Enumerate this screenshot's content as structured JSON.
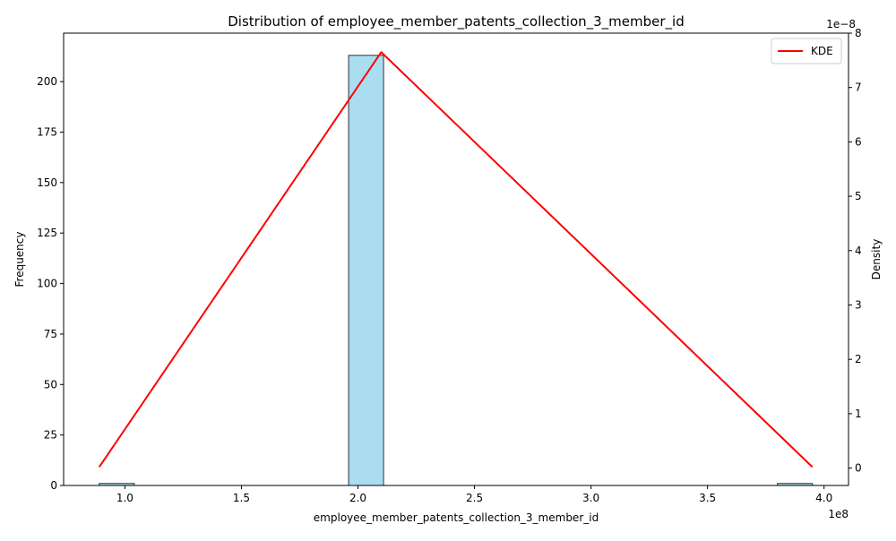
{
  "chart_data": {
    "type": "bar",
    "title": "Distribution of employee_member_patents_collection_3_member_id",
    "xlabel": "employee_member_patents_collection_3_member_id",
    "ylabel": "Frequency",
    "y2label": "Density",
    "x_offset_label": "1e8",
    "y2_offset_label": "1e−8",
    "xlim": [
      0.737,
      4.105
    ],
    "ylim": [
      0,
      224
    ],
    "y2lim": [
      -0.32,
      8.0
    ],
    "x_ticks": [
      1.0,
      1.5,
      2.0,
      2.5,
      3.0,
      3.5,
      4.0
    ],
    "x_tick_labels": [
      "1.0",
      "1.5",
      "2.0",
      "2.5",
      "3.0",
      "3.5",
      "4.0"
    ],
    "y_ticks": [
      0,
      25,
      50,
      75,
      100,
      125,
      150,
      175,
      200
    ],
    "y_tick_labels": [
      "0",
      "25",
      "50",
      "75",
      "100",
      "125",
      "150",
      "175",
      "200"
    ],
    "y2_ticks": [
      0,
      1,
      2,
      3,
      4,
      5,
      6,
      7,
      8
    ],
    "y2_tick_labels": [
      "0",
      "1",
      "2",
      "3",
      "4",
      "5",
      "6",
      "7",
      "8"
    ],
    "histogram": {
      "bins": [
        {
          "x0": 0.89,
          "x1": 1.04,
          "count": 1
        },
        {
          "x0": 1.96,
          "x1": 2.11,
          "count": 213
        },
        {
          "x0": 3.8,
          "x1": 3.95,
          "count": 1
        }
      ],
      "fill": "#87CEEB",
      "edge": "#333333"
    },
    "kde": {
      "name": "KDE",
      "color": "#ff0000",
      "x": [
        0.89,
        2.1,
        3.95
      ],
      "y": [
        0.02,
        7.65,
        0.02
      ]
    },
    "legend_position": "top-right",
    "grid": false
  }
}
